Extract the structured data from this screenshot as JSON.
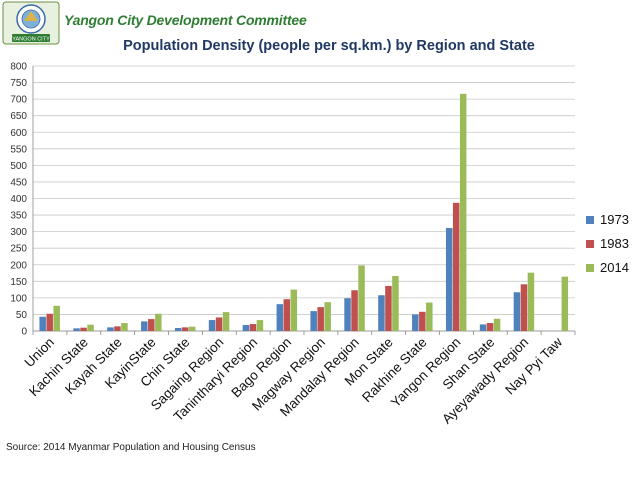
{
  "header": {
    "organization": "Yangon City Development Committee",
    "logo_text": "YANGON CITY"
  },
  "source_note": "Source: 2014 Myanmar Population and Housing Census",
  "colors": {
    "series_1973": "#4f81bd",
    "series_1983": "#c0504d",
    "series_2014": "#9bbb59",
    "title": "#1f3864",
    "org": "#2e7d32"
  },
  "chart_data": {
    "type": "bar",
    "title": "Population Density (people per sq.km.) by Region and State",
    "xlabel": "",
    "ylabel": "",
    "ylim": [
      0,
      800
    ],
    "yticks": [
      0,
      50,
      100,
      150,
      200,
      250,
      300,
      350,
      400,
      450,
      500,
      550,
      600,
      650,
      700,
      750,
      800
    ],
    "grid": true,
    "legend_position": "right",
    "categories": [
      "Union",
      "Kachin State",
      "Kayah State",
      "KayinState",
      "Chin State",
      "Sagaing Region",
      "Tanintharyi Region",
      "Bago Region",
      "Magway Region",
      "Mandalay Region",
      "Mon State",
      "Rakhine State",
      "Yangon Region",
      "Shan State",
      "Ayeyawady Region",
      "Nay Pyi Taw"
    ],
    "series": [
      {
        "name": "1973",
        "values": [
          43,
          8,
          11,
          29,
          9,
          33,
          18,
          81,
          60,
          99,
          108,
          50,
          311,
          20,
          117,
          null
        ]
      },
      {
        "name": "1983",
        "values": [
          52,
          10,
          14,
          36,
          11,
          41,
          21,
          96,
          72,
          123,
          136,
          58,
          387,
          24,
          141,
          null
        ]
      },
      {
        "name": "2014",
        "values": [
          76,
          19,
          24,
          52,
          13,
          57,
          33,
          125,
          87,
          198,
          166,
          86,
          716,
          37,
          176,
          164
        ]
      }
    ]
  }
}
